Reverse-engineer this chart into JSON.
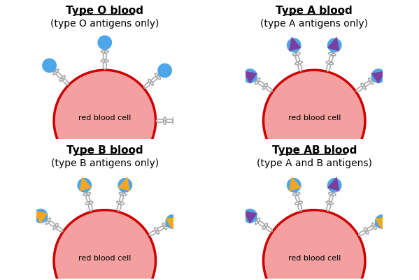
{
  "panels": [
    {
      "title": "Type O blood",
      "subtitle": "(type O antigens only)",
      "antigens": "O",
      "row": 0,
      "col": 0
    },
    {
      "title": "Type A blood",
      "subtitle": "(type A antigens only)",
      "antigens": "A",
      "row": 0,
      "col": 1
    },
    {
      "title": "Type B blood",
      "subtitle": "(type B antigens only)",
      "antigens": "B",
      "row": 1,
      "col": 0
    },
    {
      "title": "Type AB blood",
      "subtitle": "(type A and B antigens)",
      "antigens": "AB",
      "row": 1,
      "col": 1
    }
  ],
  "cell_color_face": "#f5a0a0",
  "cell_color_edge": "#cc0000",
  "antigen_blue_color": "#4da6e8",
  "antigen_A_color": "#7b3fa0",
  "antigen_B_color": "#f5a623",
  "chain_color": "#aaaaaa",
  "bg_color": "#ffffff",
  "title_fontsize": 11,
  "subtitle_fontsize": 10,
  "cell_label_fontsize": 8,
  "antigen_configs": {
    "O": [
      [
        135,
        "O"
      ],
      [
        90,
        "O"
      ],
      [
        40,
        "O"
      ],
      [
        0,
        "O"
      ]
    ],
    "A": [
      [
        145,
        "A"
      ],
      [
        105,
        "A"
      ],
      [
        75,
        "A"
      ],
      [
        35,
        "A"
      ]
    ],
    "B": [
      [
        145,
        "B"
      ],
      [
        105,
        "B"
      ],
      [
        75,
        "B"
      ],
      [
        30,
        "B"
      ]
    ],
    "AB": [
      [
        145,
        "A"
      ],
      [
        105,
        "B"
      ],
      [
        75,
        "A"
      ],
      [
        30,
        "B"
      ]
    ]
  }
}
